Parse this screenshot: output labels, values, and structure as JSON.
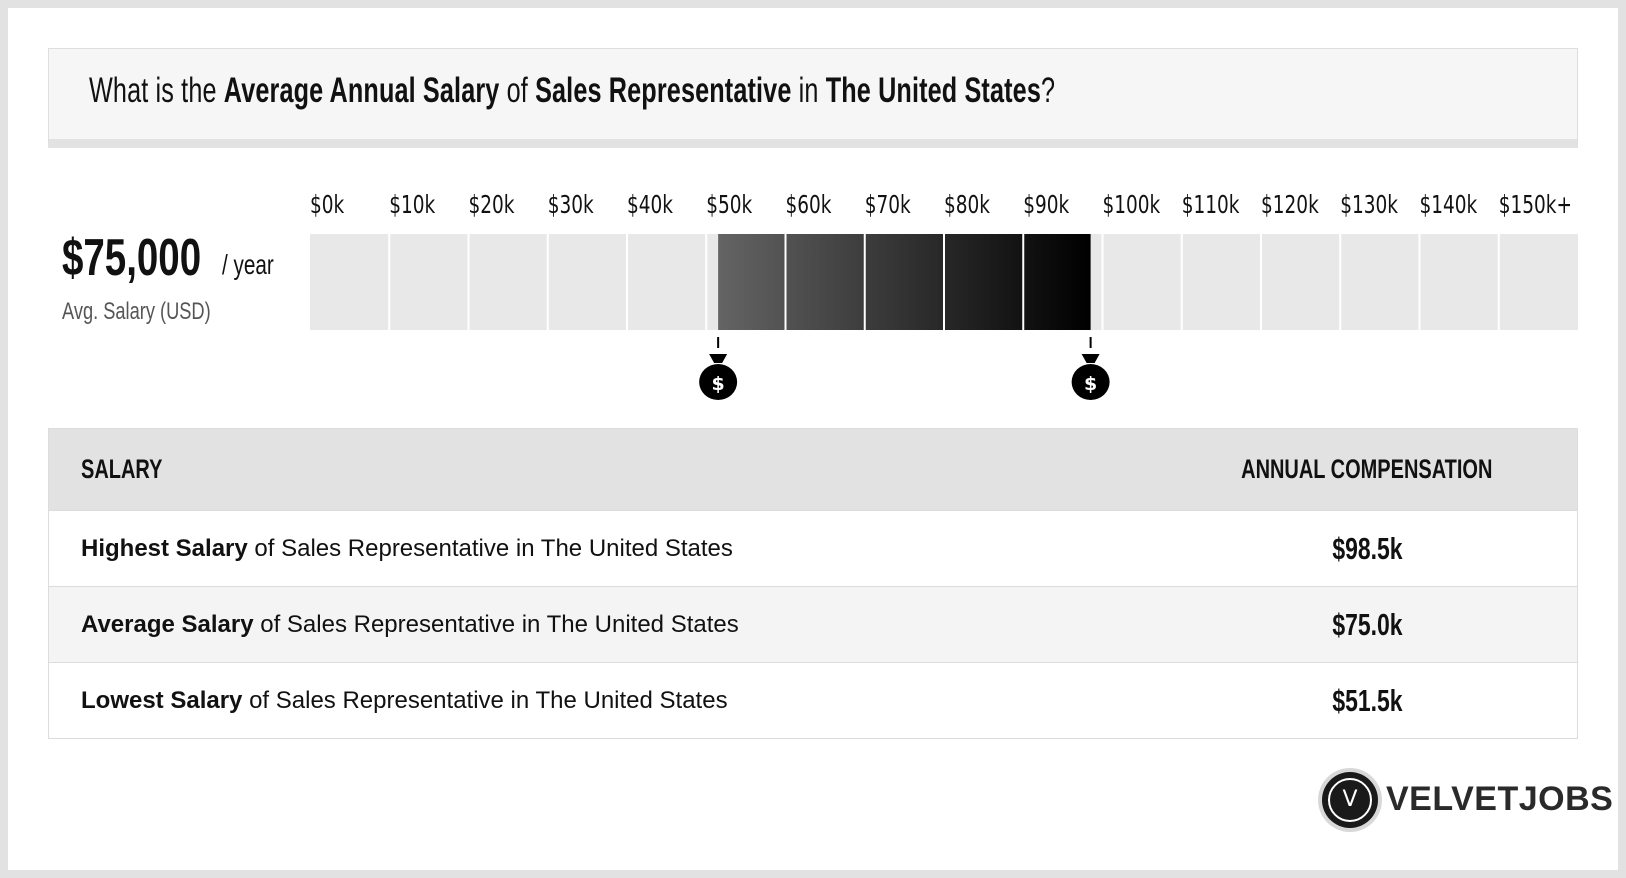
{
  "question": {
    "p1": "What is the ",
    "b1": "Average Annual Salary",
    "p2": " of ",
    "b2": "Sales Representative",
    "p3": " in ",
    "b3": "The United States",
    "p4": "?"
  },
  "summary": {
    "amount": "$75,000",
    "unit": "/ year",
    "caption": "Avg. Salary (USD)"
  },
  "chart_data": {
    "type": "bar",
    "categories": [
      "$0k",
      "$10k",
      "$20k",
      "$30k",
      "$40k",
      "$50k",
      "$60k",
      "$70k",
      "$80k",
      "$90k",
      "$100k",
      "$110k",
      "$120k",
      "$130k",
      "$140k",
      "$150k+"
    ],
    "range": {
      "low": 51.5,
      "high": 98.5,
      "unit": "k USD"
    },
    "xlim": [
      0,
      150
    ],
    "colors": {
      "track": "#e8e8e8",
      "range_start": "#646464",
      "range_end": "#000000",
      "marker": "#000000"
    },
    "markers": [
      {
        "label": "$",
        "value": 51.5,
        "icon": "money-bag-icon"
      },
      {
        "label": "$",
        "value": 98.5,
        "icon": "money-bag-icon"
      }
    ]
  },
  "table": {
    "header": {
      "salary": "SALARY",
      "compensation": "ANNUAL COMPENSATION"
    },
    "rows": [
      {
        "label_bold": "Highest Salary",
        "label_rest": " of Sales Representative in The United States",
        "value": "$98.5k"
      },
      {
        "label_bold": "Average Salary",
        "label_rest": " of Sales Representative in The United States",
        "value": "$75.0k"
      },
      {
        "label_bold": "Lowest Salary",
        "label_rest": " of Sales Representative in The United States",
        "value": "$51.5k"
      }
    ]
  },
  "brand": {
    "logo_letter": "V",
    "name": "VELVETJOBS",
    "icon": "velvetjobs-logo-icon"
  }
}
